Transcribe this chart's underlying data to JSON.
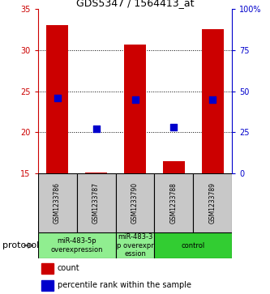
{
  "title": "GDS5347 / 1564413_at",
  "samples": [
    "GSM1233786",
    "GSM1233787",
    "GSM1233790",
    "GSM1233788",
    "GSM1233789"
  ],
  "red_bar_bottom": [
    15,
    15,
    15,
    15,
    15
  ],
  "red_bar_top": [
    33,
    15.15,
    30.7,
    16.5,
    32.5
  ],
  "blue_dot_percentile": [
    46,
    27,
    45,
    28,
    45
  ],
  "ylim_left": [
    15,
    35
  ],
  "ylim_right": [
    0,
    100
  ],
  "y_ticks_left": [
    15,
    20,
    25,
    30,
    35
  ],
  "y_ticks_right": [
    0,
    25,
    50,
    75,
    100
  ],
  "y_ticks_right_labels": [
    "0",
    "25",
    "50",
    "75",
    "100%"
  ],
  "protocol_groups": [
    {
      "label": "miR-483-5p\noverexpression",
      "start": 0,
      "end": 2,
      "color": "#90EE90"
    },
    {
      "label": "miR-483-3\np overexpr\nession",
      "start": 2,
      "end": 3,
      "color": "#90EE90"
    },
    {
      "label": "control",
      "start": 3,
      "end": 5,
      "color": "#32CD32"
    }
  ],
  "bar_width": 0.55,
  "dot_size": 28,
  "left_axis_color": "#CC0000",
  "right_axis_color": "#0000CC",
  "grid_yticks": [
    20,
    25,
    30
  ],
  "sample_box_color": "#C8C8C8",
  "title_fontsize": 9,
  "tick_fontsize": 7,
  "sample_fontsize": 5.5,
  "proto_fontsize": 6,
  "legend_fontsize": 7
}
